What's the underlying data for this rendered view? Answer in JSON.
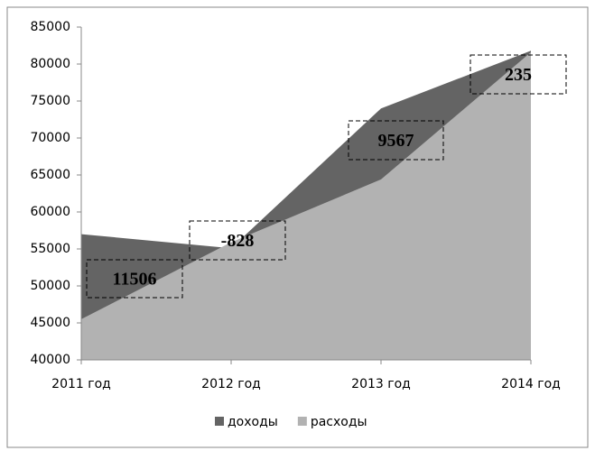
{
  "chart_data": {
    "type": "area",
    "categories": [
      "2011 год",
      "2012 год",
      "2013 год",
      "2014 год"
    ],
    "series": [
      {
        "name": "доходы",
        "color": "#646464",
        "values": [
          57000,
          55100,
          74000,
          81800
        ]
      },
      {
        "name": "расходы",
        "color": "#b2b2b2",
        "values": [
          45500,
          55900,
          64400,
          81600
        ]
      }
    ],
    "ylim": [
      40000,
      85000
    ],
    "yticks": [
      40000,
      45000,
      50000,
      55000,
      60000,
      65000,
      70000,
      75000,
      80000,
      85000
    ],
    "annotations": [
      "11506",
      "-828",
      "9567",
      "235"
    ],
    "legend": "bottom"
  }
}
